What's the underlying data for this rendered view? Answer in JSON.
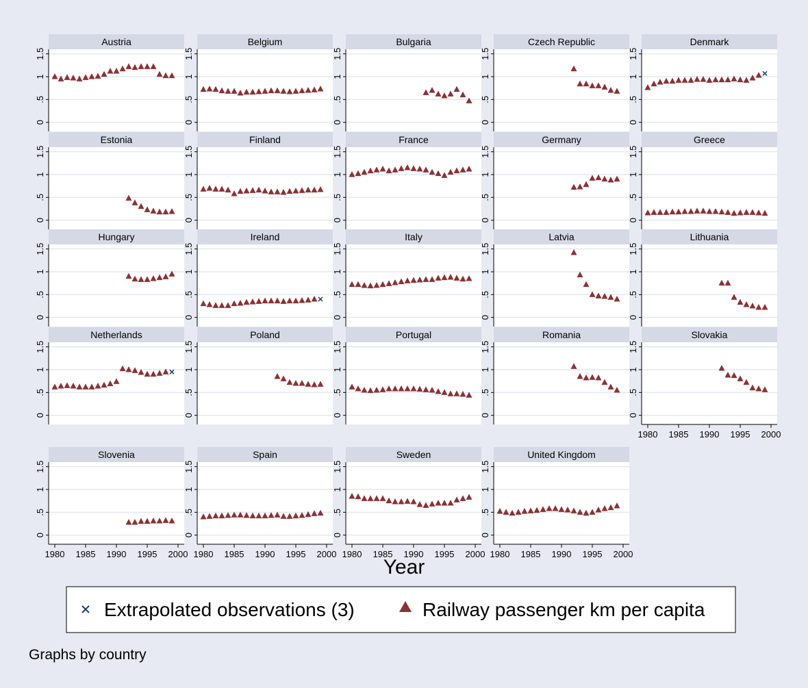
{
  "colors": {
    "outer_background": "#e8eaf3",
    "plot_background": "#ffffff",
    "strip_background": "#d5d9e6",
    "grid": "#e4e8f1",
    "axis": "#000000",
    "series_marker": "#8b3236",
    "extrapolated_marker": "#1a3d6b"
  },
  "chart_data": {
    "type": "scatter",
    "layout": "small-multiples",
    "xlabel": "Year",
    "xlim": [
      1979,
      2001
    ],
    "ylim": [
      -0.2,
      1.6
    ],
    "yticks": [
      0,
      0.5,
      1,
      1.5
    ],
    "ytick_labels": [
      "0",
      ".5",
      "1",
      "1.5"
    ],
    "xticks": [
      1980,
      1985,
      1990,
      1995,
      2000
    ],
    "xtick_labels": [
      "1980",
      "1985",
      "1990",
      "1995",
      "2000"
    ],
    "grid": true,
    "legend": {
      "position": "bottom-center",
      "entries": [
        {
          "label": "Extrapolated observations (3)",
          "marker": "x"
        },
        {
          "label": "Railway passenger km per capita",
          "marker": "triangle"
        }
      ]
    },
    "note": "Graphs by country",
    "panels": [
      {
        "country": "Austria",
        "x": [
          1980,
          1981,
          1982,
          1983,
          1984,
          1985,
          1986,
          1987,
          1988,
          1989,
          1990,
          1991,
          1992,
          1993,
          1994,
          1995,
          1996,
          1997,
          1998,
          1999
        ],
        "y": [
          1.0,
          0.95,
          0.98,
          0.97,
          0.95,
          0.98,
          1.0,
          1.01,
          1.05,
          1.12,
          1.12,
          1.17,
          1.22,
          1.2,
          1.22,
          1.22,
          1.22,
          1.05,
          1.02,
          1.02
        ]
      },
      {
        "country": "Belgium",
        "x": [
          1980,
          1981,
          1982,
          1983,
          1984,
          1985,
          1986,
          1987,
          1988,
          1989,
          1990,
          1991,
          1992,
          1993,
          1994,
          1995,
          1996,
          1997,
          1998,
          1999
        ],
        "y": [
          0.72,
          0.73,
          0.72,
          0.69,
          0.68,
          0.68,
          0.64,
          0.66,
          0.66,
          0.67,
          0.68,
          0.69,
          0.69,
          0.68,
          0.67,
          0.68,
          0.69,
          0.7,
          0.71,
          0.73
        ]
      },
      {
        "country": "Bulgaria",
        "x": [
          1992,
          1993,
          1994,
          1995,
          1996,
          1997,
          1998,
          1999
        ],
        "y": [
          0.65,
          0.7,
          0.62,
          0.58,
          0.62,
          0.72,
          0.6,
          0.47
        ]
      },
      {
        "country": "Czech Republic",
        "x": [
          1992,
          1993,
          1994,
          1995,
          1996,
          1997,
          1998,
          1999
        ],
        "y": [
          1.17,
          0.84,
          0.84,
          0.8,
          0.8,
          0.77,
          0.7,
          0.68
        ]
      },
      {
        "country": "Denmark",
        "x": [
          1980,
          1981,
          1982,
          1983,
          1984,
          1985,
          1986,
          1987,
          1988,
          1989,
          1990,
          1991,
          1992,
          1993,
          1994,
          1995,
          1996,
          1997,
          1998
        ],
        "y": [
          0.76,
          0.84,
          0.88,
          0.9,
          0.9,
          0.92,
          0.92,
          0.92,
          0.94,
          0.94,
          0.92,
          0.93,
          0.93,
          0.93,
          0.95,
          0.93,
          0.92,
          0.97,
          1.03
        ],
        "extrapolated": {
          "x": [
            1999
          ],
          "y": [
            1.07
          ]
        }
      },
      {
        "country": "Estonia",
        "x": [
          1992,
          1993,
          1994,
          1995,
          1996,
          1997,
          1998,
          1999
        ],
        "y": [
          0.48,
          0.38,
          0.3,
          0.23,
          0.2,
          0.18,
          0.18,
          0.19
        ]
      },
      {
        "country": "Finland",
        "x": [
          1980,
          1981,
          1982,
          1983,
          1984,
          1985,
          1986,
          1987,
          1988,
          1989,
          1990,
          1991,
          1992,
          1993,
          1994,
          1995,
          1996,
          1997,
          1998,
          1999
        ],
        "y": [
          0.68,
          0.7,
          0.68,
          0.68,
          0.66,
          0.58,
          0.63,
          0.64,
          0.65,
          0.66,
          0.64,
          0.62,
          0.62,
          0.61,
          0.63,
          0.64,
          0.65,
          0.66,
          0.66,
          0.67
        ]
      },
      {
        "country": "France",
        "x": [
          1980,
          1981,
          1982,
          1983,
          1984,
          1985,
          1986,
          1987,
          1988,
          1989,
          1990,
          1991,
          1992,
          1993,
          1994,
          1995,
          1996,
          1997,
          1998,
          1999
        ],
        "y": [
          1.0,
          1.02,
          1.05,
          1.08,
          1.1,
          1.12,
          1.08,
          1.1,
          1.13,
          1.15,
          1.13,
          1.12,
          1.1,
          1.05,
          1.02,
          0.98,
          1.05,
          1.08,
          1.1,
          1.12
        ]
      },
      {
        "country": "Germany",
        "x": [
          1992,
          1993,
          1994,
          1995,
          1996,
          1997,
          1998,
          1999
        ],
        "y": [
          0.72,
          0.73,
          0.78,
          0.92,
          0.93,
          0.9,
          0.88,
          0.9
        ]
      },
      {
        "country": "Greece",
        "x": [
          1980,
          1981,
          1982,
          1983,
          1984,
          1985,
          1986,
          1987,
          1988,
          1989,
          1990,
          1991,
          1992,
          1993,
          1994,
          1995,
          1996,
          1997,
          1998,
          1999
        ],
        "y": [
          0.16,
          0.17,
          0.17,
          0.17,
          0.18,
          0.18,
          0.19,
          0.19,
          0.2,
          0.2,
          0.19,
          0.19,
          0.18,
          0.17,
          0.15,
          0.16,
          0.17,
          0.17,
          0.16,
          0.15
        ]
      },
      {
        "country": "Hungary",
        "x": [
          1992,
          1993,
          1994,
          1995,
          1996,
          1997,
          1998,
          1999
        ],
        "y": [
          0.9,
          0.84,
          0.83,
          0.83,
          0.85,
          0.87,
          0.89,
          0.95
        ]
      },
      {
        "country": "Ireland",
        "x": [
          1980,
          1981,
          1982,
          1983,
          1984,
          1985,
          1986,
          1987,
          1988,
          1989,
          1990,
          1991,
          1992,
          1993,
          1994,
          1995,
          1996,
          1997,
          1998
        ],
        "y": [
          0.3,
          0.28,
          0.26,
          0.26,
          0.26,
          0.3,
          0.31,
          0.33,
          0.34,
          0.35,
          0.36,
          0.36,
          0.36,
          0.35,
          0.36,
          0.36,
          0.37,
          0.38,
          0.4
        ],
        "extrapolated": {
          "x": [
            1999
          ],
          "y": [
            0.4
          ]
        }
      },
      {
        "country": "Italy",
        "x": [
          1980,
          1981,
          1982,
          1983,
          1984,
          1985,
          1986,
          1987,
          1988,
          1989,
          1990,
          1991,
          1992,
          1993,
          1994,
          1995,
          1996,
          1997,
          1998,
          1999
        ],
        "y": [
          0.72,
          0.72,
          0.7,
          0.69,
          0.7,
          0.72,
          0.74,
          0.76,
          0.78,
          0.8,
          0.81,
          0.82,
          0.83,
          0.83,
          0.86,
          0.87,
          0.88,
          0.86,
          0.84,
          0.85
        ]
      },
      {
        "country": "Latvia",
        "x": [
          1992,
          1993,
          1994,
          1995,
          1996,
          1997,
          1998,
          1999
        ],
        "y": [
          1.42,
          0.93,
          0.72,
          0.5,
          0.47,
          0.46,
          0.44,
          0.4
        ]
      },
      {
        "country": "Lithuania",
        "x": [
          1992,
          1993,
          1994,
          1995,
          1996,
          1997,
          1998,
          1999
        ],
        "y": [
          0.75,
          0.75,
          0.44,
          0.33,
          0.28,
          0.25,
          0.22,
          0.22
        ]
      },
      {
        "country": "Netherlands",
        "x": [
          1980,
          1981,
          1982,
          1983,
          1984,
          1985,
          1986,
          1987,
          1988,
          1989,
          1990,
          1991,
          1992,
          1993,
          1994,
          1995,
          1996,
          1997,
          1998
        ],
        "y": [
          0.62,
          0.64,
          0.65,
          0.64,
          0.62,
          0.62,
          0.62,
          0.64,
          0.66,
          0.69,
          0.74,
          1.02,
          1.0,
          0.98,
          0.94,
          0.9,
          0.9,
          0.92,
          0.95
        ],
        "extrapolated": {
          "x": [
            1999
          ],
          "y": [
            0.95
          ]
        }
      },
      {
        "country": "Poland",
        "x": [
          1992,
          1993,
          1994,
          1995,
          1996,
          1997,
          1998,
          1999
        ],
        "y": [
          0.85,
          0.8,
          0.72,
          0.7,
          0.7,
          0.68,
          0.67,
          0.68
        ]
      },
      {
        "country": "Portugal",
        "x": [
          1980,
          1981,
          1982,
          1983,
          1984,
          1985,
          1986,
          1987,
          1988,
          1989,
          1990,
          1991,
          1992,
          1993,
          1994,
          1995,
          1996,
          1997,
          1998,
          1999
        ],
        "y": [
          0.62,
          0.58,
          0.55,
          0.54,
          0.55,
          0.56,
          0.58,
          0.58,
          0.58,
          0.58,
          0.58,
          0.57,
          0.56,
          0.55,
          0.52,
          0.5,
          0.47,
          0.47,
          0.46,
          0.44
        ]
      },
      {
        "country": "Romania",
        "x": [
          1992,
          1993,
          1994,
          1995,
          1996,
          1997,
          1998,
          1999
        ],
        "y": [
          1.07,
          0.85,
          0.82,
          0.83,
          0.82,
          0.72,
          0.62,
          0.55
        ]
      },
      {
        "country": "Slovakia",
        "x": [
          1992,
          1993,
          1994,
          1995,
          1996,
          1997,
          1998,
          1999
        ],
        "y": [
          1.03,
          0.88,
          0.87,
          0.8,
          0.72,
          0.6,
          0.58,
          0.56
        ]
      },
      {
        "country": "Slovenia",
        "x": [
          1992,
          1993,
          1994,
          1995,
          1996,
          1997,
          1998,
          1999
        ],
        "y": [
          0.28,
          0.28,
          0.3,
          0.3,
          0.31,
          0.31,
          0.32,
          0.31
        ]
      },
      {
        "country": "Spain",
        "x": [
          1980,
          1981,
          1982,
          1983,
          1984,
          1985,
          1986,
          1987,
          1988,
          1989,
          1990,
          1991,
          1992,
          1993,
          1994,
          1995,
          1996,
          1997,
          1998,
          1999
        ],
        "y": [
          0.4,
          0.41,
          0.42,
          0.42,
          0.43,
          0.44,
          0.44,
          0.43,
          0.42,
          0.42,
          0.42,
          0.43,
          0.44,
          0.41,
          0.41,
          0.42,
          0.43,
          0.45,
          0.47,
          0.48
        ]
      },
      {
        "country": "Sweden",
        "x": [
          1980,
          1981,
          1982,
          1983,
          1984,
          1985,
          1986,
          1987,
          1988,
          1989,
          1990,
          1991,
          1992,
          1993,
          1994,
          1995,
          1996,
          1997,
          1998,
          1999
        ],
        "y": [
          0.85,
          0.84,
          0.8,
          0.8,
          0.8,
          0.8,
          0.75,
          0.73,
          0.73,
          0.74,
          0.73,
          0.67,
          0.65,
          0.68,
          0.7,
          0.7,
          0.7,
          0.77,
          0.8,
          0.83
        ]
      },
      {
        "country": "United Kingdom",
        "x": [
          1980,
          1981,
          1982,
          1983,
          1984,
          1985,
          1986,
          1987,
          1988,
          1989,
          1990,
          1991,
          1992,
          1993,
          1994,
          1995,
          1996,
          1997,
          1998,
          1999
        ],
        "y": [
          0.52,
          0.5,
          0.48,
          0.5,
          0.52,
          0.53,
          0.54,
          0.56,
          0.58,
          0.58,
          0.56,
          0.55,
          0.53,
          0.5,
          0.48,
          0.5,
          0.55,
          0.58,
          0.6,
          0.64
        ]
      }
    ]
  }
}
